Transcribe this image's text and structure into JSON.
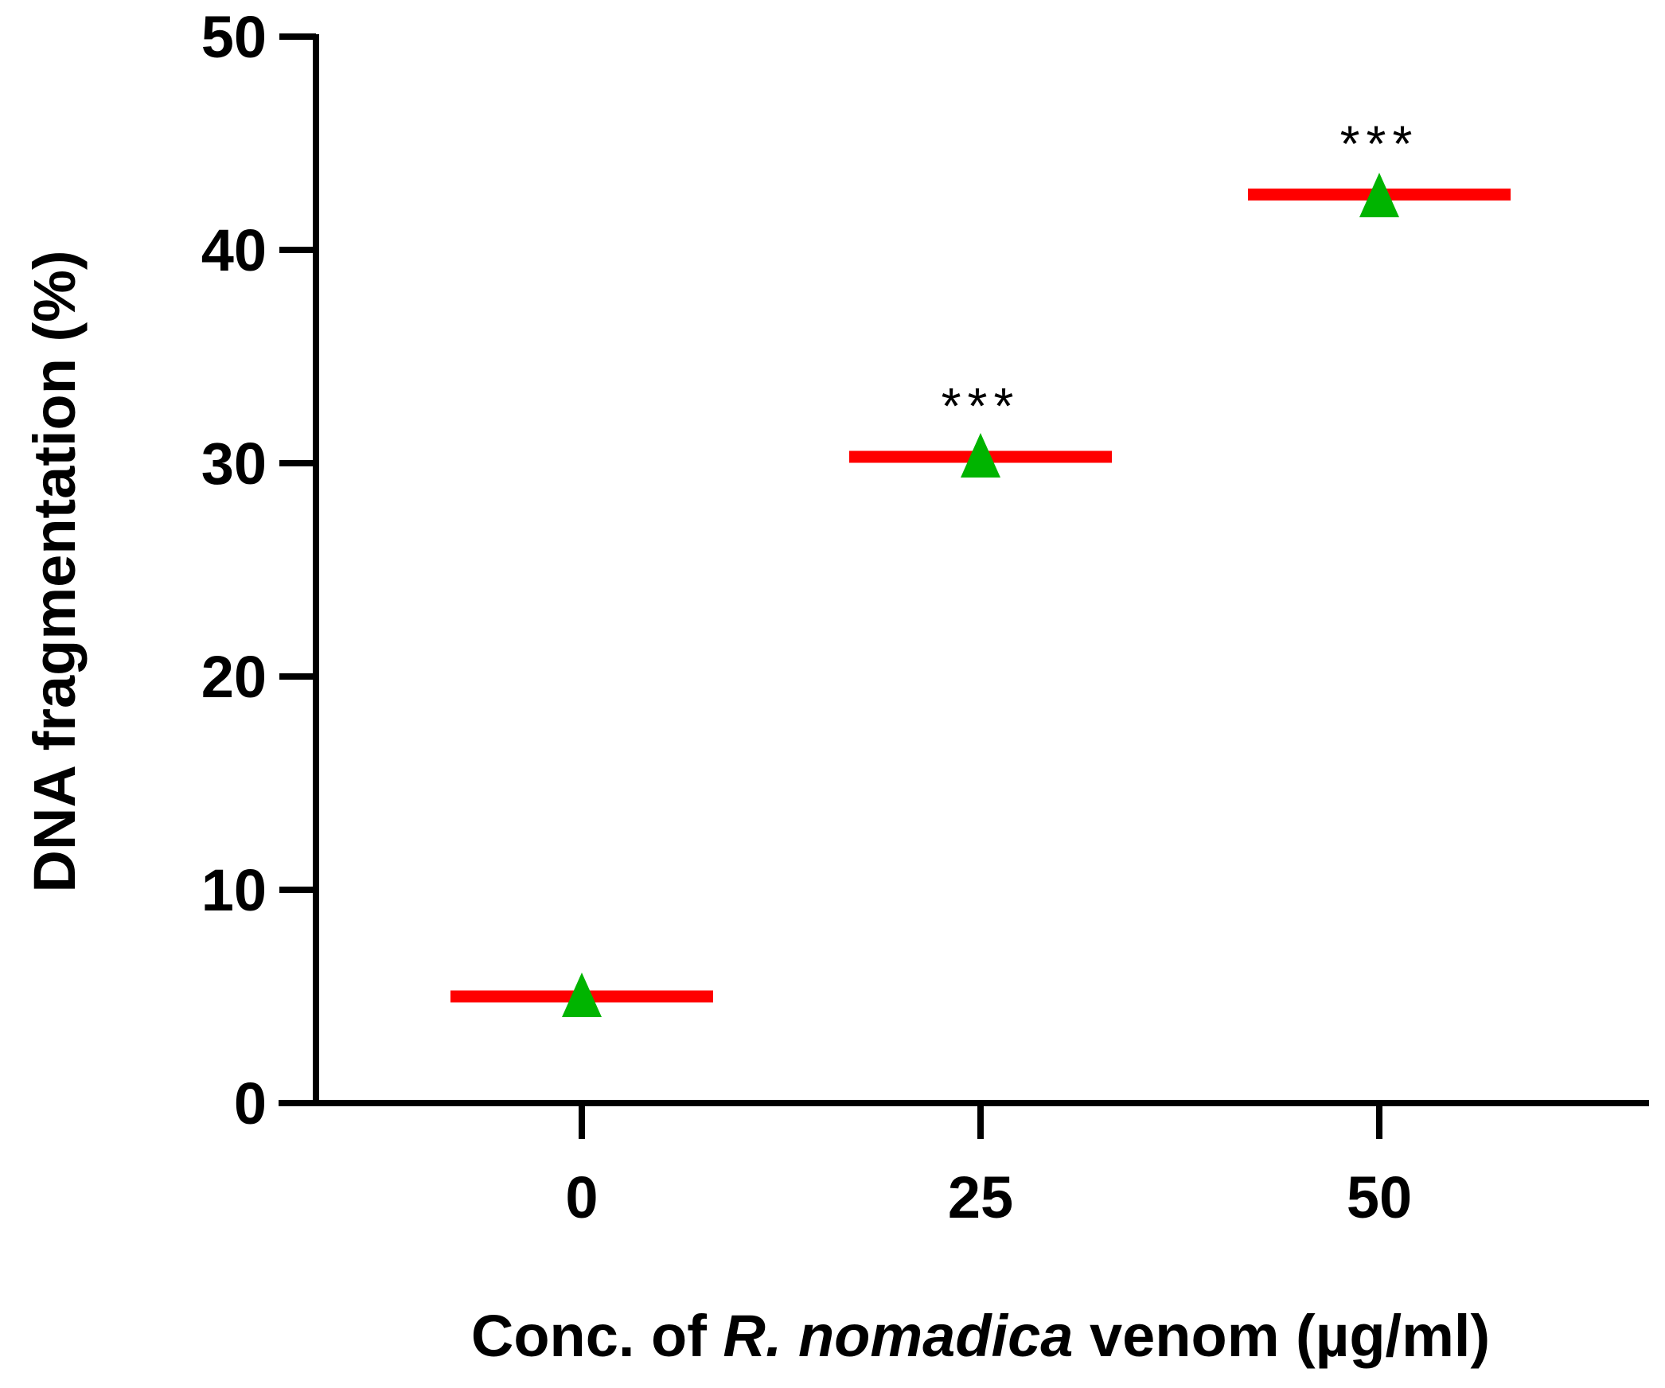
{
  "chart_data": {
    "type": "scatter",
    "title": "",
    "xlabel_parts": [
      {
        "text": "Conc. of ",
        "italic": false
      },
      {
        "text": "R. nomadica",
        "italic": true
      },
      {
        "text": " venom (µg/ml)",
        "italic": false
      }
    ],
    "ylabel": "DNA fragmentation (%)",
    "categories": [
      "0",
      "25",
      "50"
    ],
    "ylim": [
      0,
      50
    ],
    "yticks": [
      "0",
      "10",
      "20",
      "30",
      "40",
      "50"
    ],
    "means": [
      5.0,
      30.3,
      42.6
    ],
    "points": [
      5.0,
      30.3,
      42.5
    ],
    "significance": [
      "",
      "***",
      "***"
    ],
    "grid": false,
    "legend": "none"
  },
  "colors": {
    "mean_line": "#ff0000",
    "marker": "#00b400",
    "axis": "#000000"
  }
}
